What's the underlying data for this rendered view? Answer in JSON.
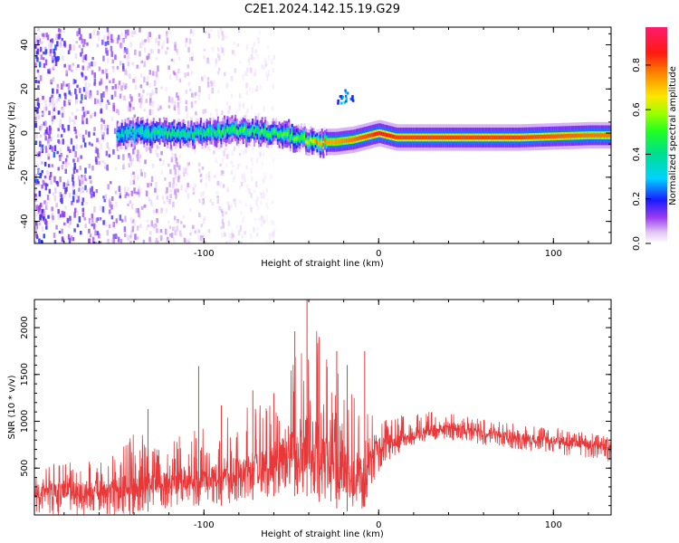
{
  "title": "C2E1.2024.142.15.19.G29",
  "chart_data": [
    {
      "type": "heatmap",
      "name": "spectrogram",
      "xlabel": "Height of straight line (km)",
      "ylabel": "Frequency (Hz)",
      "xlim": [
        -197,
        133
      ],
      "ylim": [
        -50,
        48
      ],
      "xticks": [
        -100,
        0,
        100
      ],
      "xtick_labels": [
        "-100",
        "0",
        "100"
      ],
      "yticks": [
        -40,
        -20,
        0,
        20,
        40
      ],
      "ytick_labels": [
        "-40",
        "-20",
        "0",
        "20",
        "40"
      ],
      "colorbar": {
        "label": "Normalized spectral amplitude",
        "range": [
          0,
          0.97
        ],
        "ticks": [
          0.0,
          0.2,
          0.4,
          0.6,
          0.8
        ],
        "tick_labels": [
          "0.0",
          "0.2",
          "0.4",
          "0.6",
          "0.8"
        ],
        "colormap": "gist_ncar_r"
      },
      "ridge": {
        "description": "dominant frequency track",
        "x": [
          -150,
          -120,
          -100,
          -80,
          -60,
          -45,
          -35,
          -25,
          -15,
          -5,
          0,
          10,
          40,
          80,
          120,
          133
        ],
        "y": [
          0,
          0,
          0,
          1,
          0,
          -2,
          -4,
          -4,
          -3,
          -1,
          0,
          -2,
          -2,
          -2,
          -1,
          -1
        ],
        "amplitude": [
          0.35,
          0.45,
          0.45,
          0.5,
          0.5,
          0.55,
          0.75,
          0.75,
          0.8,
          0.85,
          0.9,
          0.85,
          0.85,
          0.85,
          0.8,
          0.8
        ]
      },
      "noise_region": {
        "x_range": [
          -197,
          -60
        ],
        "freq_spread": [
          -50,
          48
        ]
      },
      "features": [
        {
          "x_range": [
            -24,
            -15
          ],
          "y_range": [
            14,
            20
          ],
          "amplitude": 0.35
        }
      ]
    },
    {
      "type": "line",
      "name": "snr",
      "xlabel": "Height of straight line (km)",
      "ylabel": "SNR (10 * v/v)",
      "xlim": [
        -197,
        133
      ],
      "ylim": [
        0,
        2300
      ],
      "xticks": [
        -100,
        0,
        100
      ],
      "xtick_labels": [
        "-100",
        "0",
        "100"
      ],
      "yticks": [
        500,
        1000,
        1500,
        2000
      ],
      "ytick_labels": [
        "500",
        "1000",
        "1500",
        "2000"
      ],
      "color": "#e8383a",
      "envelope": {
        "x": [
          -197,
          -170,
          -150,
          -137,
          -130,
          -110,
          -90,
          -75,
          -60,
          -50,
          -40,
          -30,
          -20,
          -10,
          0,
          10,
          20,
          30,
          40,
          60,
          80,
          100,
          120,
          133
        ],
        "baseline": [
          250,
          260,
          280,
          330,
          350,
          380,
          430,
          480,
          550,
          650,
          750,
          600,
          500,
          350,
          750,
          800,
          850,
          900,
          950,
          870,
          820,
          800,
          760,
          720
        ],
        "upper": [
          550,
          560,
          650,
          950,
          700,
          900,
          1000,
          1200,
          1300,
          1600,
          2300,
          1800,
          1500,
          1200,
          1000,
          1050,
          1100,
          1120,
          1100,
          1020,
          970,
          930,
          880,
          850
        ],
        "lower": [
          0,
          0,
          0,
          0,
          50,
          100,
          100,
          150,
          200,
          200,
          200,
          100,
          50,
          0,
          450,
          650,
          750,
          800,
          800,
          750,
          700,
          650,
          600,
          560
        ]
      },
      "peaks": [
        {
          "x": -132,
          "y": 1130
        },
        {
          "x": -103,
          "y": 1590
        },
        {
          "x": -90,
          "y": 1170
        },
        {
          "x": -72,
          "y": 1330
        },
        {
          "x": -60,
          "y": 1300
        },
        {
          "x": -48,
          "y": 1960
        },
        {
          "x": -41,
          "y": 2300
        },
        {
          "x": -34,
          "y": 1900
        },
        {
          "x": -24,
          "y": 1750
        },
        {
          "x": -18,
          "y": 1600
        },
        {
          "x": -8,
          "y": 1750
        }
      ]
    }
  ]
}
